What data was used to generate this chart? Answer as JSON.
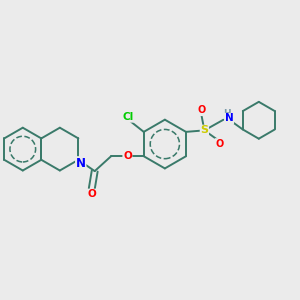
{
  "background_color": "#ebebeb",
  "atom_colors": {
    "C": "#3a7a6a",
    "N": "#0000ff",
    "O": "#ff0000",
    "S": "#cccc00",
    "Cl": "#00cc00",
    "H": "#7a9aaa"
  },
  "bond_color": "#3a7a6a",
  "bond_width": 1.4,
  "font_size": 7.5
}
